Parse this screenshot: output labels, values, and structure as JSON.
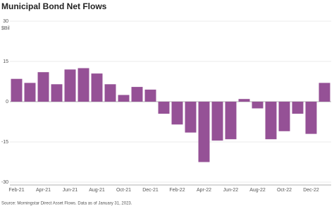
{
  "chart_data": {
    "type": "bar",
    "title": "Municipal Bond Net Flows",
    "y_unit": "$Bil",
    "categories": [
      "Feb-21",
      null,
      "Apr-21",
      null,
      "Jun-21",
      null,
      "Aug-21",
      null,
      "Oct-21",
      null,
      "Dec-21",
      null,
      "Feb-22",
      null,
      "Apr-22",
      null,
      "Jun-22",
      null,
      "Aug-22",
      null,
      "Oct-22",
      null,
      "Dec-22",
      null
    ],
    "values": [
      8.5,
      7,
      11,
      6.5,
      12,
      12.5,
      10.5,
      6.5,
      2.5,
      5.5,
      4.5,
      -4.5,
      -8.5,
      -11.5,
      -22.5,
      -14.5,
      -14,
      1,
      -2.5,
      -14,
      -11,
      -4.5,
      -12,
      7
    ],
    "color": "#955196",
    "ylim": [
      -30,
      30
    ],
    "yticks": [
      -30,
      -15,
      0,
      15,
      30
    ],
    "grid": true,
    "source": "Source: Morningstar Direct Asset Flows. Data as of January 31, 2023."
  }
}
